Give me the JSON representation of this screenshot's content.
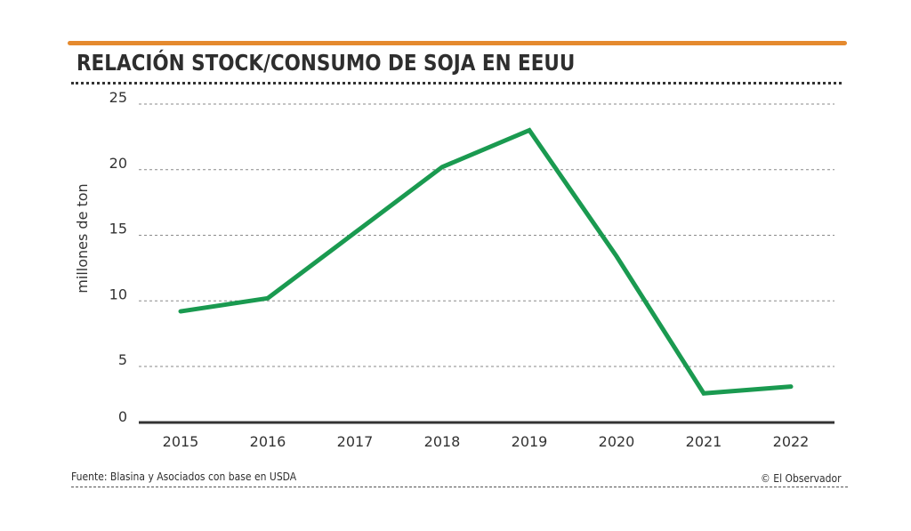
{
  "header": {
    "title": "RELACIÓN STOCK/CONSUMO DE SOJA EN EEUU",
    "accent_color": "#e58a2e"
  },
  "footer": {
    "source": "Fuente: Blasina y Asociados con base en USDA",
    "credit": "© El Observador"
  },
  "chart_data": {
    "type": "line",
    "title": "RELACIÓN STOCK/CONSUMO DE SOJA EN EEUU",
    "xlabel": "",
    "ylabel": "millones de ton",
    "categories": [
      "2015",
      "2016",
      "2017",
      "2018",
      "2019",
      "2020",
      "2021",
      "2022"
    ],
    "series": [
      {
        "name": "Stock/consumo",
        "color": "#1a9a50",
        "values": [
          9.2,
          10.2,
          15.2,
          20.2,
          23.0,
          13.4,
          2.6,
          3.2
        ]
      }
    ],
    "yticks": [
      0,
      5,
      10,
      15,
      20,
      25
    ],
    "ytick_labels": [
      "0",
      "5",
      "10",
      "15",
      "20",
      "25"
    ],
    "ylim": [
      0,
      25
    ],
    "grid": true,
    "legend": "none"
  }
}
